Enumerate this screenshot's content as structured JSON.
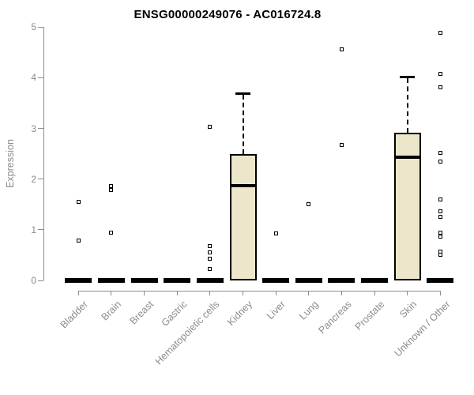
{
  "chart_data": {
    "type": "boxplot",
    "title": "ENSG00000249076 - AC016724.8",
    "ylabel": "Expression",
    "xlabel": "",
    "ylim": [
      0,
      5
    ],
    "yticks": [
      0,
      1,
      2,
      3,
      4,
      5
    ],
    "grid": false,
    "legend": "none",
    "categories": [
      "Bladder",
      "Brain",
      "Breast",
      "Gastric",
      "Hematopoietic cells",
      "Kidney",
      "Liver",
      "Lung",
      "Pancreas",
      "Prostate",
      "Skin",
      "Unknown / Other"
    ],
    "boxes": [
      {
        "category": "Bladder",
        "whisker_low": 0,
        "q1": 0,
        "median": 0,
        "q3": 0,
        "whisker_high": 0,
        "outliers": [
          1.55,
          0.79
        ]
      },
      {
        "category": "Brain",
        "whisker_low": 0,
        "q1": 0,
        "median": 0,
        "q3": 0,
        "whisker_high": 0,
        "outliers": [
          1.86,
          1.79,
          0.95
        ]
      },
      {
        "category": "Breast",
        "whisker_low": 0,
        "q1": 0,
        "median": 0,
        "q3": 0,
        "whisker_high": 0,
        "outliers": []
      },
      {
        "category": "Gastric",
        "whisker_low": 0,
        "q1": 0,
        "median": 0,
        "q3": 0,
        "whisker_high": 0,
        "outliers": []
      },
      {
        "category": "Hematopoietic cells",
        "whisker_low": 0,
        "q1": 0,
        "median": 0,
        "q3": 0,
        "whisker_high": 0,
        "outliers": [
          3.03,
          0.68,
          0.55,
          0.43,
          0.23
        ]
      },
      {
        "category": "Kidney",
        "whisker_low": 0,
        "q1": 0,
        "median": 1.87,
        "q3": 2.49,
        "whisker_high": 3.69,
        "outliers": []
      },
      {
        "category": "Liver",
        "whisker_low": 0,
        "q1": 0,
        "median": 0,
        "q3": 0,
        "whisker_high": 0,
        "outliers": [
          0.93
        ]
      },
      {
        "category": "Lung",
        "whisker_low": 0,
        "q1": 0,
        "median": 0,
        "q3": 0,
        "whisker_high": 0,
        "outliers": [
          1.51
        ]
      },
      {
        "category": "Pancreas",
        "whisker_low": 0,
        "q1": 0,
        "median": 0,
        "q3": 0,
        "whisker_high": 0,
        "outliers": [
          4.56,
          2.68
        ]
      },
      {
        "category": "Prostate",
        "whisker_low": 0,
        "q1": 0,
        "median": 0,
        "q3": 0,
        "whisker_high": 0,
        "outliers": []
      },
      {
        "category": "Skin",
        "whisker_low": 0,
        "q1": 0,
        "median": 2.43,
        "q3": 2.91,
        "whisker_high": 4.03,
        "outliers": []
      },
      {
        "category": "Unknown / Other",
        "whisker_low": 0,
        "q1": 0,
        "median": 0,
        "q3": 0,
        "whisker_high": 0,
        "outliers": [
          4.88,
          4.08,
          3.81,
          2.52,
          2.34,
          1.6,
          1.37,
          1.25,
          0.95,
          0.87,
          0.57,
          0.5
        ]
      }
    ],
    "colors": {
      "box_fill": "#ECE7CB",
      "box_border": "#000000",
      "median": "#000000",
      "whisker": "#000000",
      "outlier_border": "#000000",
      "outlier_fill": "#FFFFFF",
      "axis": "#8C8C8C",
      "tick_label": "#8C8C8C",
      "title": "#000000",
      "background": "#FFFFFF"
    }
  }
}
